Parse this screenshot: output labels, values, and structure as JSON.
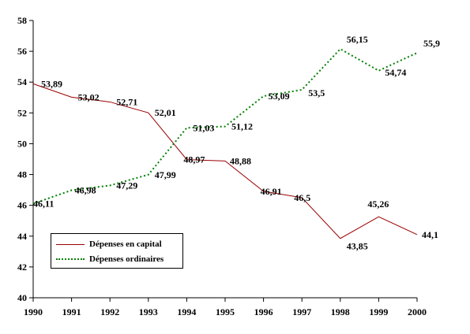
{
  "chart_data": {
    "type": "line",
    "x": [
      1990,
      1991,
      1992,
      1993,
      1994,
      1995,
      1996,
      1997,
      1998,
      1999,
      2000
    ],
    "ylim": [
      40,
      58
    ],
    "yticks": [
      40,
      42,
      44,
      46,
      48,
      50,
      52,
      54,
      56,
      58
    ],
    "series": [
      {
        "name": "Dépenses en capital",
        "color": "#990000",
        "style": "solid",
        "values": [
          53.89,
          53.02,
          52.71,
          52.01,
          48.97,
          48.88,
          46.91,
          46.5,
          43.85,
          45.26,
          44.1
        ],
        "labels": [
          "53,89",
          "53,02",
          "52,71",
          "52,01",
          "48,97",
          "48,88",
          "46,91",
          "46,5",
          "43,85",
          "45,26",
          "44,1"
        ]
      },
      {
        "name": "Dépenses ordinaires",
        "color": "#008000",
        "style": "dotted",
        "values": [
          46.11,
          46.98,
          47.29,
          47.99,
          51.03,
          51.12,
          53.09,
          53.5,
          56.15,
          54.74,
          55.9
        ],
        "labels": [
          "46,11",
          "46,98",
          "47,29",
          "47,99",
          "51,03",
          "51,12",
          "53,09",
          "53,5",
          "56,15",
          "54,74",
          "55,9"
        ]
      }
    ],
    "grid": false,
    "legend_position": "bottom-left"
  }
}
